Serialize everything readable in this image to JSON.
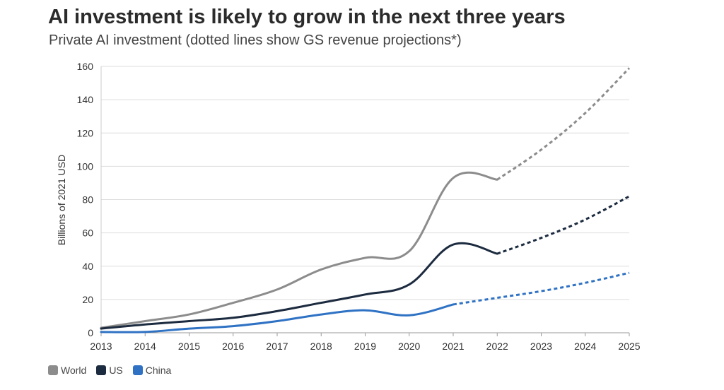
{
  "chart_data": {
    "type": "line",
    "title": "AI investment is likely to grow in the next three years",
    "subtitle": "Private AI investment (dotted lines show GS revenue projections*)",
    "xlabel": "",
    "ylabel": "Billions of 2021 USD",
    "x": [
      2013,
      2014,
      2015,
      2016,
      2017,
      2018,
      2019,
      2020,
      2021,
      2022,
      2023,
      2024,
      2025
    ],
    "ylim": [
      0,
      160
    ],
    "yticks": [
      0,
      20,
      40,
      60,
      80,
      100,
      120,
      140,
      160
    ],
    "grid": true,
    "legend_position": "bottom-left",
    "series": [
      {
        "name": "World",
        "color": "#8c8c8c",
        "values": [
          3,
          7,
          11,
          18,
          26,
          38,
          45,
          49,
          93,
          92,
          110,
          132,
          159
        ],
        "projection_from": 2022
      },
      {
        "name": "US",
        "color": "#1c2b3f",
        "values": [
          2.5,
          5,
          7,
          9,
          13,
          18,
          23,
          29,
          53,
          47.5,
          57,
          68,
          82
        ],
        "projection_from": 2022
      },
      {
        "name": "China",
        "color": "#2f72c4",
        "values": [
          0.5,
          0.5,
          2.5,
          4,
          7,
          11,
          13.5,
          10.5,
          17,
          21,
          25,
          30,
          36
        ],
        "projection_from": 2021
      }
    ]
  }
}
